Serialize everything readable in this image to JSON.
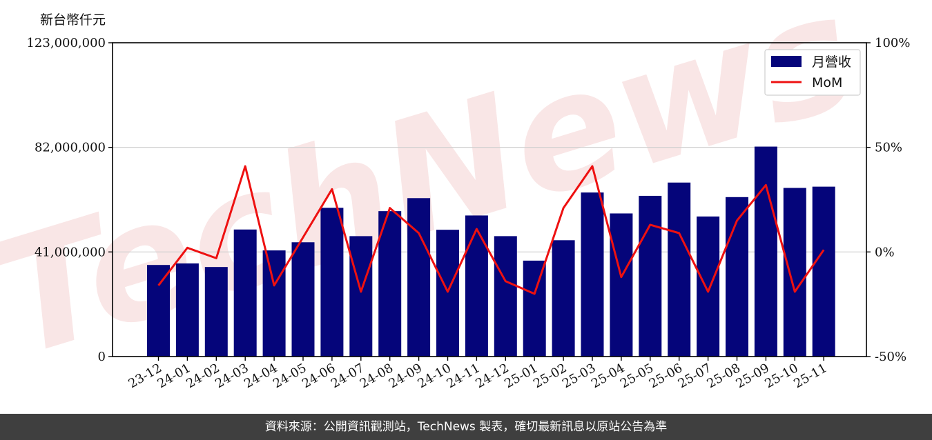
{
  "unit_label": "新台幣仟元",
  "footer_text": "資料來源：公開資訊觀測站，TechNews 製表，確切最新訊息以原站公告為準",
  "watermark_text": "TechNews",
  "colors": {
    "bar": "#05057a",
    "line": "#ee1111",
    "grid": "#cccccc",
    "footer_bg": "#3f3f3f"
  },
  "chart_data": {
    "type": "bar",
    "categories": [
      "23-12",
      "24-01",
      "24-02",
      "24-03",
      "24-04",
      "24-05",
      "24-06",
      "24-07",
      "24-08",
      "24-09",
      "24-10",
      "24-11",
      "24-12",
      "25-01",
      "25-02",
      "25-03",
      "25-04",
      "25-05",
      "25-06",
      "25-07",
      "25-08",
      "25-09",
      "25-10",
      "25-11"
    ],
    "series": [
      {
        "name": "月營收",
        "type": "bar",
        "axis": "left",
        "values": [
          35900000,
          36500000,
          35100000,
          49800000,
          41600000,
          44800000,
          58300000,
          47200000,
          57000000,
          62100000,
          49700000,
          55300000,
          47200000,
          37600000,
          45600000,
          64300000,
          56100000,
          63000000,
          68200000,
          54900000,
          62500000,
          82300000,
          66100000,
          66600000
        ]
      },
      {
        "name": "MoM",
        "type": "line",
        "axis": "right",
        "values": [
          -16,
          2,
          -3,
          41,
          -16,
          7,
          30,
          -19,
          21,
          9,
          -19,
          11,
          -14,
          -20,
          21,
          41,
          -12,
          13,
          9,
          -19,
          15,
          32,
          -19,
          1
        ]
      }
    ],
    "y_left": {
      "range": [
        0,
        123000000
      ],
      "ticks": [
        "0",
        "41,000,000",
        "82,000,000",
        "123,000,000"
      ],
      "tick_values": [
        0,
        41000000,
        82000000,
        123000000
      ]
    },
    "y_right": {
      "range": [
        -50,
        100
      ],
      "ticks": [
        "-50%",
        "0%",
        "50%",
        "100%"
      ],
      "tick_values": [
        -50,
        0,
        50,
        100
      ]
    },
    "grid": "horizontal",
    "legend_position": "top-right"
  }
}
